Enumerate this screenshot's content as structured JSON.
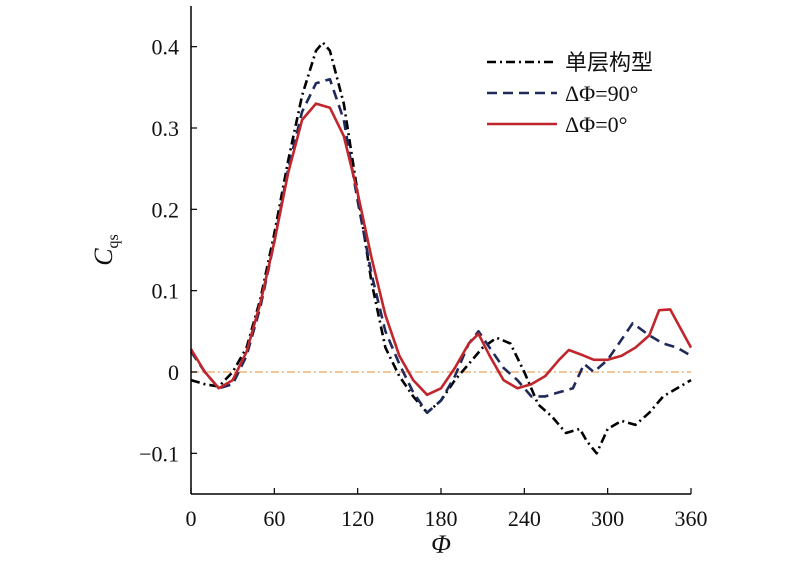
{
  "chart_data": {
    "type": "line",
    "xlabel": "Φ",
    "ylabel": "C",
    "ylabel_sub": "qs",
    "xlim": [
      0,
      360
    ],
    "ylim": [
      -0.15,
      0.45
    ],
    "xticks": [
      0,
      60,
      120,
      180,
      240,
      300,
      360
    ],
    "xtick_labels": [
      "0",
      "60",
      "120",
      "180",
      "240",
      "300",
      "360"
    ],
    "yticks": [
      -0.1,
      0,
      0.1,
      0.2,
      0.3,
      0.4
    ],
    "ytick_labels": [
      "−0.1",
      "0",
      "0.1",
      "0.2",
      "0.3",
      "0.4"
    ],
    "grid": false,
    "legend_position": "top-right",
    "zero_line_color": "#f0b27a",
    "series": [
      {
        "name": "单层构型",
        "color": "#000000",
        "dash": "dashdot",
        "points": [
          [
            0,
            -0.01
          ],
          [
            10,
            -0.015
          ],
          [
            20,
            -0.018
          ],
          [
            30,
            0.0
          ],
          [
            40,
            0.03
          ],
          [
            50,
            0.09
          ],
          [
            60,
            0.17
          ],
          [
            70,
            0.26
          ],
          [
            80,
            0.34
          ],
          [
            90,
            0.395
          ],
          [
            95,
            0.405
          ],
          [
            100,
            0.395
          ],
          [
            110,
            0.33
          ],
          [
            120,
            0.22
          ],
          [
            130,
            0.11
          ],
          [
            140,
            0.03
          ],
          [
            150,
            -0.005
          ],
          [
            160,
            -0.03
          ],
          [
            170,
            -0.05
          ],
          [
            180,
            -0.035
          ],
          [
            190,
            -0.01
          ],
          [
            200,
            0.01
          ],
          [
            210,
            0.03
          ],
          [
            220,
            0.042
          ],
          [
            230,
            0.035
          ],
          [
            240,
            0.0
          ],
          [
            250,
            -0.04
          ],
          [
            260,
            -0.055
          ],
          [
            270,
            -0.075
          ],
          [
            280,
            -0.07
          ],
          [
            285,
            -0.085
          ],
          [
            292,
            -0.1
          ],
          [
            300,
            -0.07
          ],
          [
            310,
            -0.06
          ],
          [
            320,
            -0.065
          ],
          [
            330,
            -0.05
          ],
          [
            340,
            -0.03
          ],
          [
            350,
            -0.02
          ],
          [
            360,
            -0.01
          ]
        ]
      },
      {
        "name": "ΔΦ=90°",
        "color": "#1f2a5a",
        "dash": "dashed",
        "points": [
          [
            0,
            0.025
          ],
          [
            10,
            0.0
          ],
          [
            20,
            -0.02
          ],
          [
            30,
            -0.015
          ],
          [
            40,
            0.02
          ],
          [
            50,
            0.08
          ],
          [
            60,
            0.16
          ],
          [
            70,
            0.25
          ],
          [
            80,
            0.32
          ],
          [
            90,
            0.355
          ],
          [
            100,
            0.36
          ],
          [
            110,
            0.31
          ],
          [
            120,
            0.21
          ],
          [
            130,
            0.12
          ],
          [
            140,
            0.05
          ],
          [
            150,
            0.01
          ],
          [
            160,
            -0.025
          ],
          [
            170,
            -0.05
          ],
          [
            180,
            -0.035
          ],
          [
            190,
            -0.005
          ],
          [
            200,
            0.035
          ],
          [
            207,
            0.05
          ],
          [
            215,
            0.03
          ],
          [
            225,
            0.005
          ],
          [
            235,
            -0.01
          ],
          [
            245,
            -0.03
          ],
          [
            255,
            -0.03
          ],
          [
            265,
            -0.025
          ],
          [
            275,
            -0.02
          ],
          [
            283,
            0.01
          ],
          [
            290,
            0.0
          ],
          [
            300,
            0.015
          ],
          [
            310,
            0.04
          ],
          [
            318,
            0.06
          ],
          [
            330,
            0.045
          ],
          [
            340,
            0.035
          ],
          [
            350,
            0.03
          ],
          [
            360,
            0.02
          ]
        ]
      },
      {
        "name": "ΔΦ=0°",
        "color": "#c0262c",
        "dash": "solid",
        "points": [
          [
            0,
            0.028
          ],
          [
            10,
            0.0
          ],
          [
            20,
            -0.02
          ],
          [
            30,
            -0.01
          ],
          [
            40,
            0.025
          ],
          [
            50,
            0.085
          ],
          [
            60,
            0.16
          ],
          [
            70,
            0.245
          ],
          [
            80,
            0.31
          ],
          [
            90,
            0.33
          ],
          [
            100,
            0.325
          ],
          [
            110,
            0.29
          ],
          [
            120,
            0.22
          ],
          [
            130,
            0.14
          ],
          [
            140,
            0.07
          ],
          [
            150,
            0.02
          ],
          [
            160,
            -0.01
          ],
          [
            170,
            -0.028
          ],
          [
            180,
            -0.02
          ],
          [
            190,
            0.005
          ],
          [
            200,
            0.035
          ],
          [
            207,
            0.047
          ],
          [
            215,
            0.02
          ],
          [
            225,
            -0.01
          ],
          [
            235,
            -0.02
          ],
          [
            245,
            -0.015
          ],
          [
            255,
            -0.005
          ],
          [
            265,
            0.015
          ],
          [
            272,
            0.027
          ],
          [
            280,
            0.022
          ],
          [
            290,
            0.015
          ],
          [
            300,
            0.015
          ],
          [
            310,
            0.02
          ],
          [
            320,
            0.03
          ],
          [
            330,
            0.045
          ],
          [
            337,
            0.076
          ],
          [
            345,
            0.077
          ],
          [
            352,
            0.055
          ],
          [
            360,
            0.03
          ]
        ]
      }
    ]
  }
}
